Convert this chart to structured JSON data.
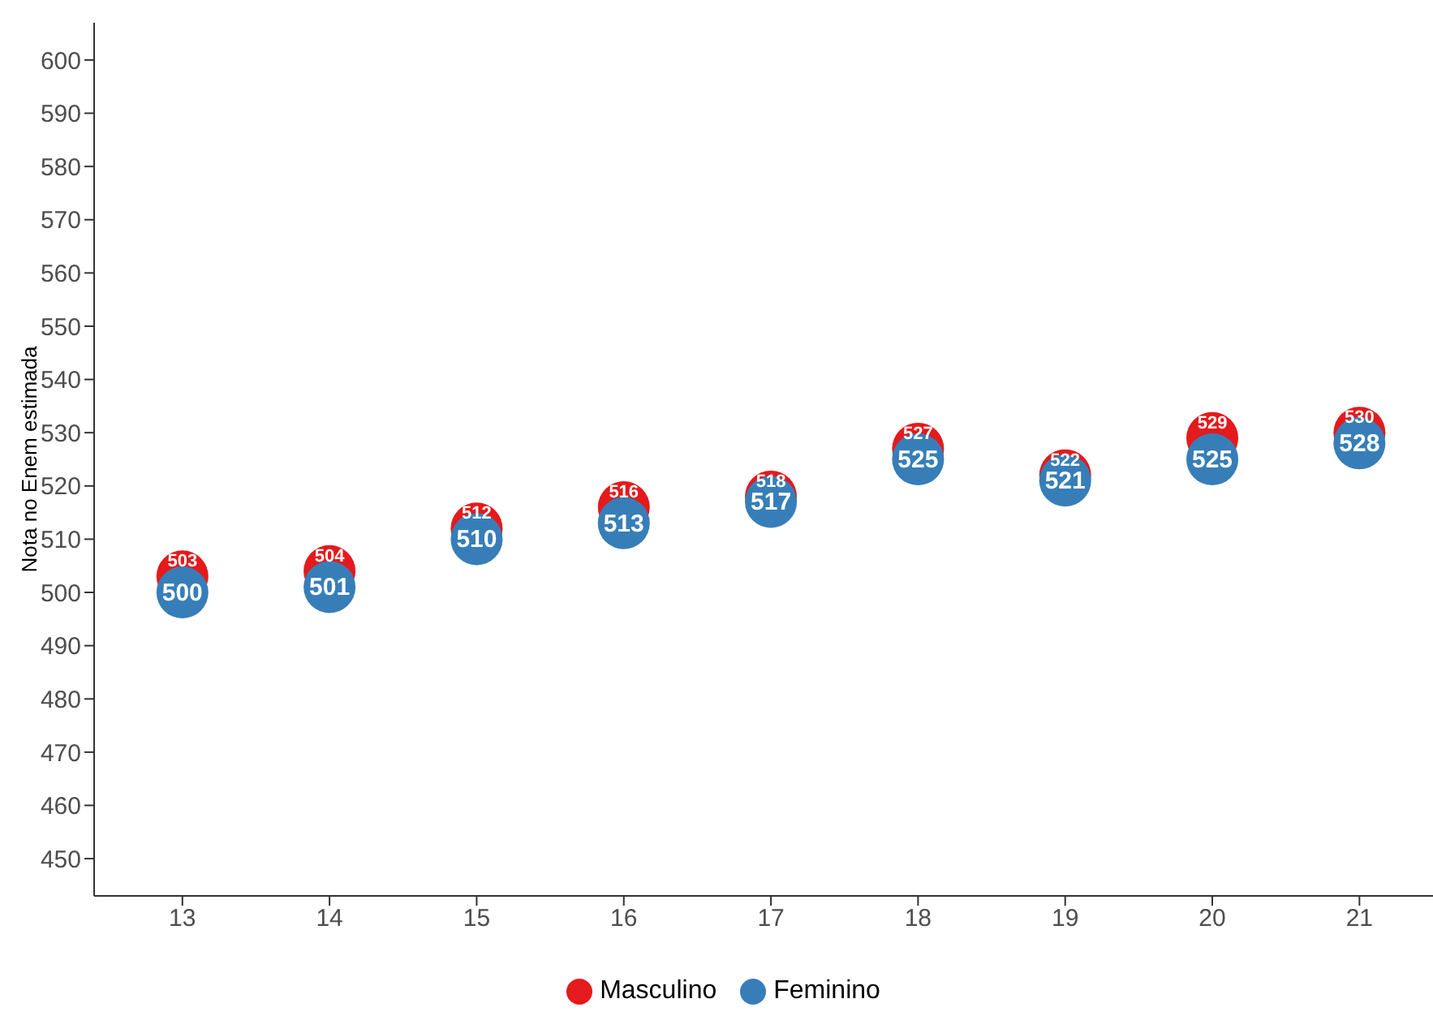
{
  "chart_data": {
    "type": "scatter",
    "ylabel": "Nota no Enem estimada",
    "x": [
      13,
      14,
      15,
      16,
      17,
      18,
      19,
      20,
      21
    ],
    "series": [
      {
        "name": "Masculino",
        "color": "#e41a1c",
        "values": [
          503,
          504,
          512,
          516,
          518,
          527,
          522,
          529,
          530
        ]
      },
      {
        "name": "Feminino",
        "color": "#377eb8",
        "values": [
          500,
          501,
          510,
          513,
          517,
          525,
          521,
          525,
          528
        ]
      }
    ],
    "xlim": [
      12.4,
      21.5
    ],
    "xticks": [
      13,
      14,
      15,
      16,
      17,
      18,
      19,
      20,
      21
    ],
    "ylim": [
      443,
      607
    ],
    "yticks": [
      450,
      460,
      470,
      480,
      490,
      500,
      510,
      520,
      530,
      540,
      550,
      560,
      570,
      580,
      590,
      600
    ],
    "data_labels": true,
    "marker": "circle",
    "grid": false,
    "legend": "bottom"
  }
}
